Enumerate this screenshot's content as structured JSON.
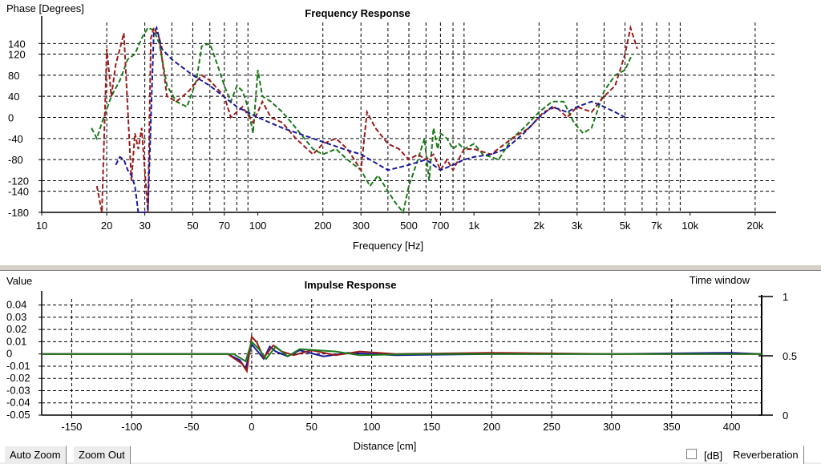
{
  "freq_panel": {
    "title": "Frequency Response",
    "y_label": "Phase [Degrees]",
    "x_label": "Frequency [Hz]"
  },
  "impulse_panel": {
    "title": "Impulse Response",
    "y_label": "Value",
    "x_label": "Distance [cm]",
    "right_label": "Time window"
  },
  "controls": {
    "auto_zoom": "Auto Zoom",
    "zoom_out": "Zoom Out",
    "db_label": "[dB]",
    "db_checked": false,
    "reverberation": "Reverberation"
  },
  "colors": {
    "green": "#1a7a1a",
    "red": "#9b1a1a",
    "blue": "#1a1a9b",
    "grid": "#000000",
    "axis": "#000000"
  },
  "chart_data": [
    {
      "type": "line",
      "title": "Frequency Response",
      "xlabel": "Frequency [Hz]",
      "ylabel": "Phase [Degrees]",
      "xscale": "log",
      "xlim": [
        10,
        25000
      ],
      "ylim": [
        -180,
        180
      ],
      "x_ticks": [
        10,
        20,
        30,
        50,
        70,
        100,
        200,
        300,
        500,
        700,
        1000,
        2000,
        3000,
        5000,
        7000,
        10000,
        20000
      ],
      "x_tick_labels": [
        "10",
        "20",
        "30",
        "50",
        "70",
        "100",
        "200",
        "300",
        "500",
        "700",
        "1k",
        "2k",
        "3k",
        "5k",
        "7k",
        "10k",
        "20k"
      ],
      "y_ticks": [
        140,
        120,
        80,
        40,
        0,
        -40,
        -80,
        -120,
        -140,
        -180
      ],
      "grid": true,
      "series": [
        {
          "color": "green",
          "style": "dashed",
          "points": [
            [
              17,
              -20
            ],
            [
              18,
              -40
            ],
            [
              19,
              -10
            ],
            [
              21,
              40
            ],
            [
              23,
              70
            ],
            [
              25,
              110
            ],
            [
              27,
              120
            ],
            [
              29,
              150
            ],
            [
              31,
              170
            ],
            [
              33,
              165
            ],
            [
              35,
              140
            ],
            [
              38,
              60
            ],
            [
              42,
              30
            ],
            [
              47,
              20
            ],
            [
              52,
              70
            ],
            [
              55,
              135
            ],
            [
              60,
              140
            ],
            [
              65,
              100
            ],
            [
              70,
              60
            ],
            [
              75,
              30
            ],
            [
              80,
              60
            ],
            [
              85,
              50
            ],
            [
              90,
              20
            ],
            [
              95,
              -30
            ],
            [
              100,
              90
            ],
            [
              105,
              40
            ],
            [
              115,
              30
            ],
            [
              130,
              10
            ],
            [
              150,
              -20
            ],
            [
              180,
              -60
            ],
            [
              200,
              -70
            ],
            [
              230,
              -60
            ],
            [
              260,
              -80
            ],
            [
              300,
              -100
            ],
            [
              330,
              -130
            ],
            [
              360,
              -110
            ],
            [
              400,
              -140
            ],
            [
              430,
              -160
            ],
            [
              470,
              -180
            ],
            [
              500,
              -130
            ],
            [
              550,
              -80
            ],
            [
              590,
              -40
            ],
            [
              620,
              -120
            ],
            [
              650,
              -20
            ],
            [
              680,
              -60
            ],
            [
              700,
              -30
            ],
            [
              750,
              -40
            ],
            [
              800,
              -60
            ],
            [
              850,
              -50
            ],
            [
              900,
              -60
            ],
            [
              1000,
              -50
            ],
            [
              1100,
              -70
            ],
            [
              1300,
              -80
            ],
            [
              1500,
              -40
            ],
            [
              1700,
              -20
            ],
            [
              2000,
              10
            ],
            [
              2300,
              30
            ],
            [
              2600,
              30
            ],
            [
              2900,
              -10
            ],
            [
              3200,
              -30
            ],
            [
              3500,
              -20
            ],
            [
              4000,
              50
            ],
            [
              4500,
              80
            ],
            [
              5000,
              90
            ],
            [
              5400,
              120
            ]
          ]
        },
        {
          "color": "red",
          "style": "dashed",
          "points": [
            [
              18,
              -130
            ],
            [
              19,
              -180
            ],
            [
              20,
              130
            ],
            [
              21,
              40
            ],
            [
              22,
              100
            ],
            [
              23,
              130
            ],
            [
              24,
              160
            ],
            [
              26,
              -120
            ],
            [
              27,
              -30
            ],
            [
              28,
              -60
            ],
            [
              29,
              -20
            ],
            [
              30,
              -100
            ],
            [
              31,
              -180
            ],
            [
              32,
              150
            ],
            [
              33,
              170
            ],
            [
              35,
              150
            ],
            [
              38,
              40
            ],
            [
              42,
              30
            ],
            [
              48,
              50
            ],
            [
              55,
              80
            ],
            [
              60,
              70
            ],
            [
              70,
              40
            ],
            [
              75,
              0
            ],
            [
              85,
              20
            ],
            [
              95,
              -10
            ],
            [
              105,
              30
            ],
            [
              115,
              0
            ],
            [
              130,
              -10
            ],
            [
              150,
              -40
            ],
            [
              180,
              -70
            ],
            [
              200,
              -50
            ],
            [
              230,
              -40
            ],
            [
              260,
              -60
            ],
            [
              300,
              -100
            ],
            [
              320,
              10
            ],
            [
              350,
              -20
            ],
            [
              400,
              -50
            ],
            [
              450,
              -60
            ],
            [
              500,
              -80
            ],
            [
              550,
              -70
            ],
            [
              600,
              -80
            ],
            [
              650,
              -70
            ],
            [
              700,
              -100
            ],
            [
              750,
              -80
            ],
            [
              800,
              -100
            ],
            [
              900,
              -60
            ],
            [
              1000,
              -60
            ],
            [
              1200,
              -70
            ],
            [
              1500,
              -40
            ],
            [
              1800,
              -20
            ],
            [
              2100,
              10
            ],
            [
              2400,
              20
            ],
            [
              2700,
              0
            ],
            [
              3000,
              20
            ],
            [
              3500,
              10
            ],
            [
              4000,
              40
            ],
            [
              4500,
              60
            ],
            [
              5000,
              120
            ],
            [
              5300,
              170
            ],
            [
              5700,
              130
            ]
          ]
        },
        {
          "color": "blue",
          "style": "dashed",
          "points": [
            [
              22,
              -90
            ],
            [
              23,
              -75
            ],
            [
              24,
              -80
            ],
            [
              25,
              -100
            ],
            [
              26,
              -110
            ],
            [
              27,
              -130
            ],
            [
              28,
              -180
            ],
            [
              30,
              -180
            ],
            [
              31,
              -175
            ],
            [
              33,
              160
            ],
            [
              34,
              170
            ],
            [
              36,
              130
            ],
            [
              40,
              110
            ],
            [
              50,
              80
            ],
            [
              60,
              60
            ],
            [
              80,
              20
            ],
            [
              100,
              0
            ],
            [
              130,
              -20
            ],
            [
              180,
              -40
            ],
            [
              250,
              -60
            ],
            [
              300,
              -70
            ],
            [
              400,
              -100
            ],
            [
              500,
              -90
            ],
            [
              600,
              -80
            ],
            [
              700,
              -100
            ],
            [
              800,
              -90
            ],
            [
              900,
              -80
            ],
            [
              1000,
              -75
            ],
            [
              1200,
              -70
            ],
            [
              1400,
              -60
            ],
            [
              1700,
              -30
            ],
            [
              2000,
              0
            ],
            [
              2300,
              20
            ],
            [
              2700,
              10
            ],
            [
              3000,
              20
            ],
            [
              3500,
              30
            ],
            [
              4000,
              20
            ],
            [
              4500,
              10
            ],
            [
              5000,
              0
            ]
          ]
        }
      ]
    },
    {
      "type": "line",
      "title": "Impulse Response",
      "xlabel": "Distance [cm]",
      "ylabel": "Value",
      "xlim": [
        -175,
        425
      ],
      "ylim": [
        -0.05,
        0.045
      ],
      "x_ticks": [
        -150,
        -100,
        -50,
        0,
        50,
        100,
        150,
        200,
        250,
        300,
        350,
        400
      ],
      "y_ticks": [
        0.04,
        0.03,
        0.02,
        0.01,
        0,
        -0.01,
        -0.02,
        -0.03,
        -0.04,
        -0.05
      ],
      "y_tick_labels": [
        "0.04",
        "0.03",
        "0.02",
        "0.01",
        "0",
        "-0.01",
        "-0.02",
        "-0.03",
        "-0.04",
        "-0.05"
      ],
      "right_axis": {
        "label": "Time window",
        "ticks": [
          1,
          0.5,
          0
        ]
      },
      "grid": true,
      "series": [
        {
          "color": "blue",
          "points": [
            [
              -175,
              0
            ],
            [
              -20,
              0
            ],
            [
              -10,
              -0.005
            ],
            [
              -5,
              -0.012
            ],
            [
              0,
              0.008
            ],
            [
              5,
              0.002
            ],
            [
              10,
              -0.004
            ],
            [
              15,
              0.006
            ],
            [
              20,
              0.002
            ],
            [
              30,
              -0.002
            ],
            [
              40,
              0.003
            ],
            [
              60,
              -0.002
            ],
            [
              80,
              0.001
            ],
            [
              120,
              -0.001
            ],
            [
              200,
              0
            ],
            [
              300,
              0
            ],
            [
              400,
              0.001
            ],
            [
              425,
              0
            ]
          ]
        },
        {
          "color": "red",
          "points": [
            [
              -175,
              0
            ],
            [
              -20,
              0
            ],
            [
              -8,
              -0.008
            ],
            [
              -4,
              -0.014
            ],
            [
              0,
              0.014
            ],
            [
              4,
              0.01
            ],
            [
              10,
              -0.003
            ],
            [
              18,
              0.007
            ],
            [
              25,
              0.002
            ],
            [
              35,
              -0.001
            ],
            [
              50,
              0.003
            ],
            [
              70,
              -0.001
            ],
            [
              90,
              0.002
            ],
            [
              120,
              0
            ],
            [
              200,
              0.001
            ],
            [
              300,
              0
            ],
            [
              400,
              0
            ],
            [
              425,
              0
            ]
          ]
        },
        {
          "color": "green",
          "points": [
            [
              -175,
              0
            ],
            [
              -15,
              0
            ],
            [
              -5,
              -0.006
            ],
            [
              0,
              0.01
            ],
            [
              6,
              0.004
            ],
            [
              12,
              -0.004
            ],
            [
              20,
              0.006
            ],
            [
              30,
              -0.002
            ],
            [
              40,
              0.004
            ],
            [
              55,
              0.003
            ],
            [
              70,
              0.002
            ],
            [
              90,
              -0.001
            ],
            [
              140,
              0
            ],
            [
              250,
              0
            ],
            [
              400,
              0
            ],
            [
              425,
              0
            ]
          ]
        }
      ]
    }
  ]
}
